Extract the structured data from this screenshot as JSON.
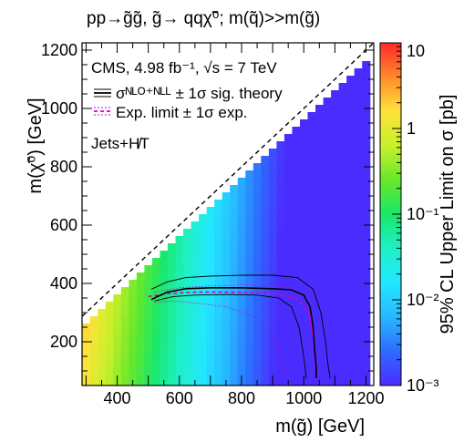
{
  "chart_data": {
    "type": "heatmap",
    "title": "pp→g̃g̃, g̃→ qqχ̃⁰; m(q̃)>>m(g̃)",
    "xlabel": "m(g̃) [GeV]",
    "ylabel": "m(χ̃⁰) [GeV]",
    "zlabel": "95% CL Upper Limit on σ [pb]",
    "xlim": [
      287,
      1225
    ],
    "ylim": [
      50,
      1225
    ],
    "zlim": [
      0.001,
      10
    ],
    "zscale": "log",
    "x_ticks": [
      400,
      600,
      800,
      1000,
      1200
    ],
    "y_ticks": [
      200,
      400,
      600,
      800,
      1000,
      1200
    ],
    "z_ticks": [
      {
        "value": 10,
        "label": "10"
      },
      {
        "value": 1,
        "label": "1"
      },
      {
        "value": 0.1,
        "label": "10⁻¹"
      },
      {
        "value": 0.01,
        "label": "10⁻²"
      },
      {
        "value": 0.001,
        "label": "10⁻³"
      }
    ],
    "cell_size": 25,
    "annotations": [
      "CMS, 4.98 fb⁻¹, √s = 7 TeV",
      "Jets+H̸T"
    ],
    "legend": [
      {
        "label": "σᴺᴸᴼ⁺ᴺᴸᴸ ± 1σ sig. theory",
        "color": "#000000",
        "style": "solid"
      },
      {
        "label": "Exp. limit ± 1σ exp.",
        "color": "#cc00cc",
        "style": "dashed"
      }
    ],
    "legend_position": "top-left",
    "diagonal": {
      "x": [
        287,
        1225
      ],
      "y": [
        287,
        1225
      ],
      "style": "dashed"
    },
    "observed_limit": {
      "x": [
        510,
        560,
        620,
        700,
        800,
        900,
        960,
        1000,
        1020,
        1030,
        1035,
        1040,
        1040
      ],
      "y": [
        345,
        370,
        382,
        385,
        385,
        382,
        378,
        360,
        320,
        250,
        170,
        110,
        75
      ]
    },
    "observed_plus": {
      "x": [
        510,
        560,
        620,
        700,
        800,
        900,
        980,
        1030,
        1055,
        1070,
        1078,
        1085
      ],
      "y": [
        380,
        405,
        420,
        425,
        428,
        428,
        420,
        380,
        300,
        200,
        120,
        75
      ]
    },
    "observed_minus": {
      "x": [
        520,
        580,
        650,
        750,
        850,
        920,
        960,
        985,
        1000,
        1008
      ],
      "y": [
        340,
        355,
        360,
        362,
        360,
        350,
        320,
        250,
        150,
        75
      ]
    },
    "expected_limit": {
      "x": [
        500,
        560,
        650,
        750,
        850,
        930,
        980,
        1015,
        1030,
        1038,
        1042
      ],
      "y": [
        355,
        365,
        370,
        370,
        368,
        362,
        345,
        300,
        220,
        140,
        75
      ]
    },
    "expected_plus": {
      "x": [
        520,
        600,
        700,
        800,
        900,
        960,
        1000,
        1020,
        1030,
        1035
      ],
      "y": [
        370,
        385,
        392,
        395,
        393,
        385,
        355,
        300,
        200,
        75
      ]
    },
    "expected_minus": {
      "x": [
        520,
        580,
        660,
        760,
        840,
        890,
        920,
        940,
        955
      ],
      "y": [
        335,
        340,
        332,
        318,
        285,
        240,
        180,
        120,
        75
      ]
    },
    "sigma_model": {
      "log10_intercept": 1.6,
      "slope_per_gev": -0.0051,
      "mass_splitting_coef": 0.22
    }
  }
}
